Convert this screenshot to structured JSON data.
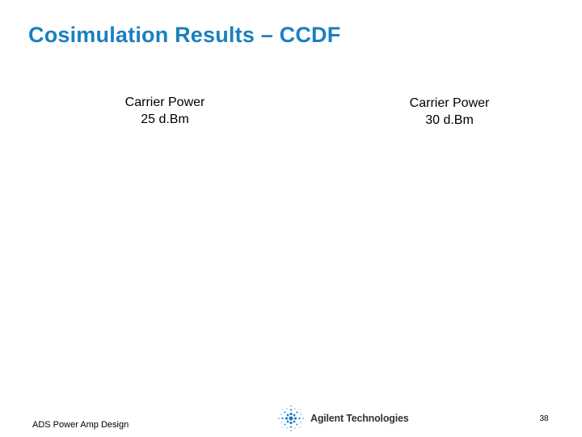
{
  "slide": {
    "title": "Cosimulation Results – CCDF",
    "title_color": "#1a7fc1"
  },
  "captions": [
    {
      "line1": "Carrier Power",
      "line2": "25 d.Bm"
    },
    {
      "line1": "Carrier Power",
      "line2": "30 d.Bm"
    }
  ],
  "footer": {
    "left_text": "ADS Power Amp Design",
    "logo_text": "Agilent Technologies",
    "logo_icon": "agilent-spark-icon",
    "page_number": "38"
  }
}
